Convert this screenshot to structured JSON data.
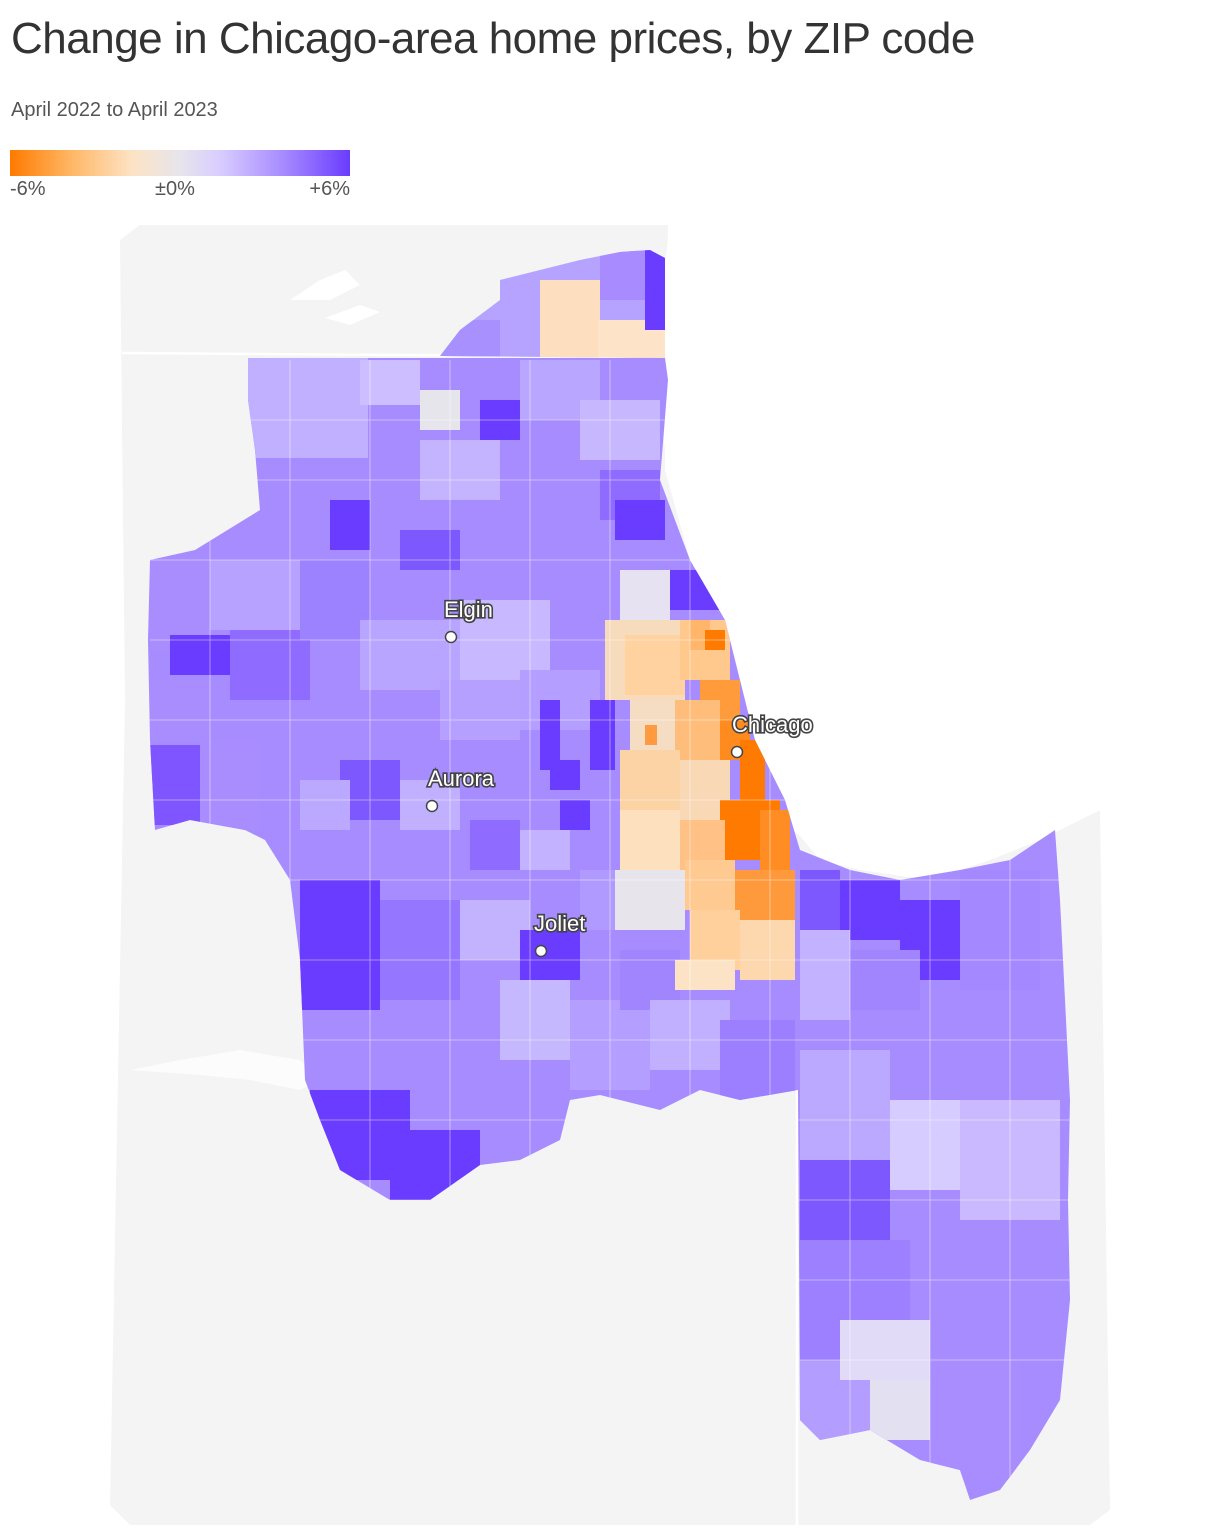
{
  "title": "Change in Chicago-area home prices, by ZIP code",
  "subtitle": "April 2022 to April 2023",
  "legend": {
    "min_label": "-6%",
    "mid_label": "±0%",
    "max_label": "+6%"
  },
  "colors": {
    "decline_strong": "#ff7a00",
    "decline_mild": "#fddcb5",
    "neutral": "#e6e5eb",
    "increase_mild": "#c7b8ff",
    "increase_strong": "#6a3cff",
    "background_land": "#f4f4f4"
  },
  "cities": [
    {
      "name": "Elgin"
    },
    {
      "name": "Chicago"
    },
    {
      "name": "Aurora"
    },
    {
      "name": "Joliet"
    }
  ]
}
